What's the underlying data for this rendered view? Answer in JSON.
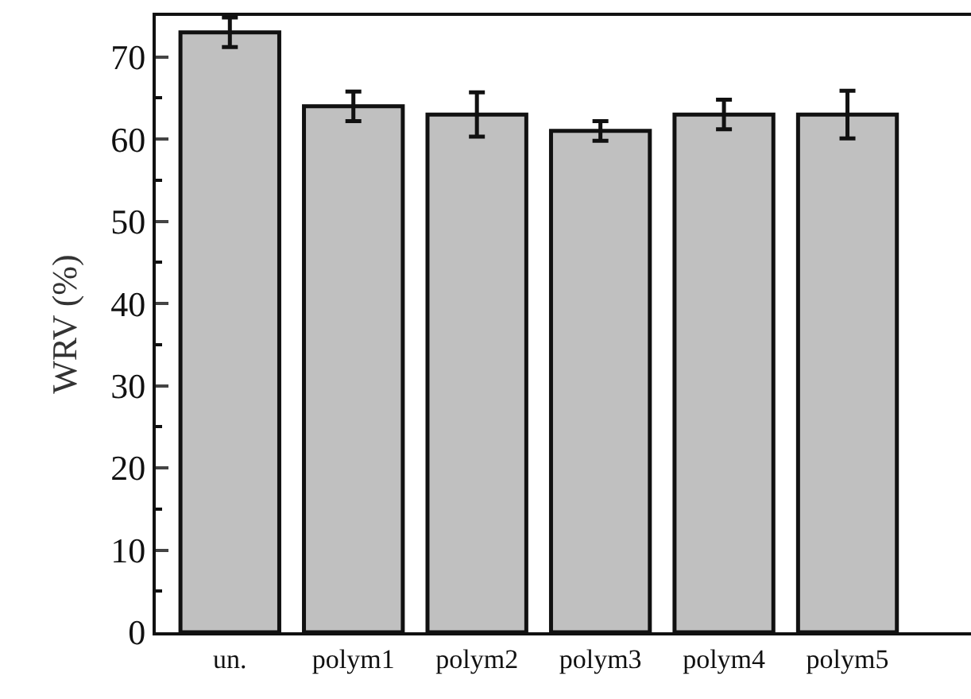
{
  "chart_data": {
    "type": "bar",
    "ylabel": "WRV (%)",
    "categories": [
      "un.",
      "polym1",
      "polym2",
      "polym3",
      "polym4",
      "polym5"
    ],
    "values": [
      73,
      64,
      63,
      61,
      63,
      63
    ],
    "errors": [
      1.8,
      1.8,
      2.7,
      1.2,
      1.8,
      2.9
    ],
    "color": "#c0c0c0",
    "ylim": [
      0,
      75
    ],
    "yticks": [
      0,
      {
        "value": 5,
        "label": null
      },
      10,
      {
        "value": 15,
        "label": null
      },
      20,
      {
        "value": 25,
        "label": null
      },
      30,
      {
        "value": 35,
        "label": null
      },
      40,
      {
        "value": 45,
        "label": null
      },
      50,
      {
        "value": 55,
        "label": null
      },
      60,
      {
        "value": 65,
        "label": null
      },
      70,
      {
        "value": 75,
        "label": null
      }
    ]
  }
}
